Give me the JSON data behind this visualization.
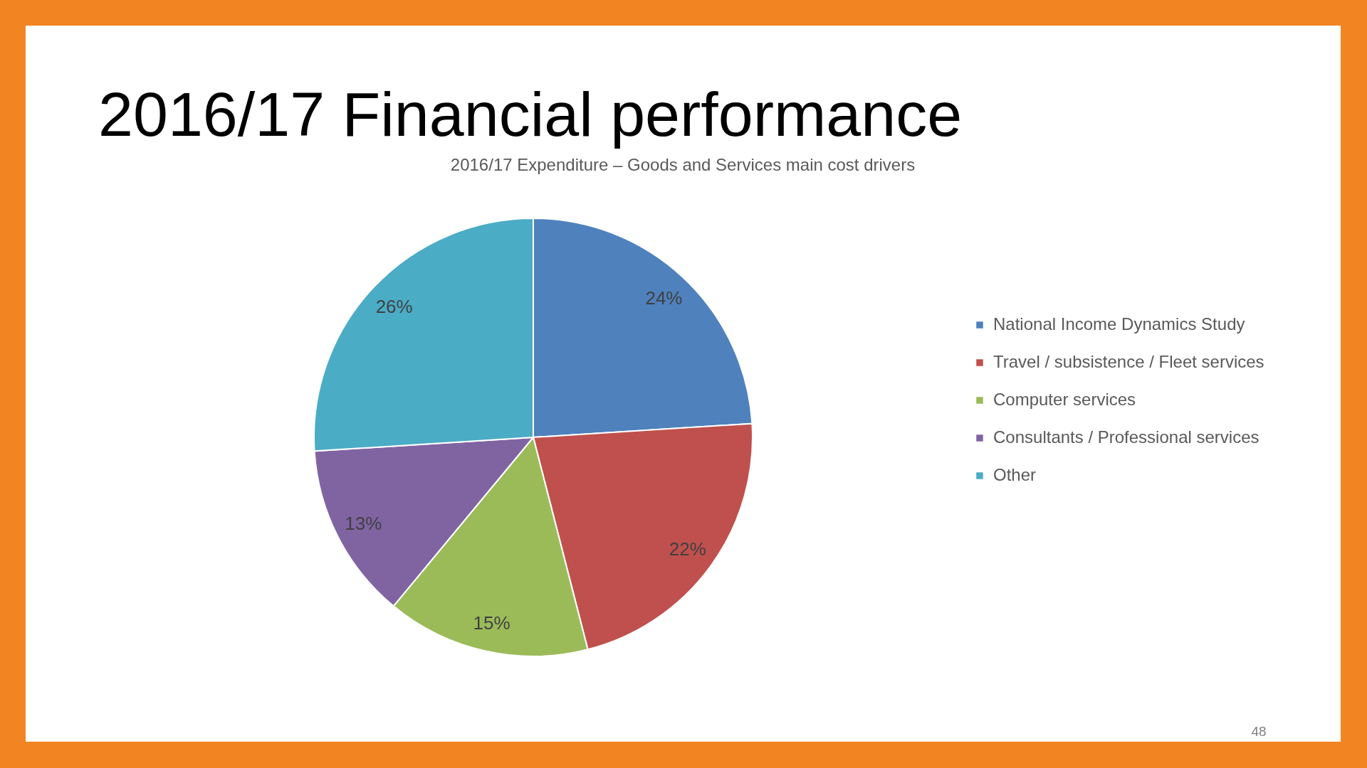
{
  "chart_data": {
    "type": "pie",
    "title": "2016/17 Financial performance",
    "subtitle": "2016/17 Expenditure – Goods and Services main cost drivers",
    "categories": [
      "National Income Dynamics Study",
      "Travel / subsistence / Fleet services",
      "Computer services",
      "Consultants / Professional services",
      "Other"
    ],
    "values": [
      24,
      22,
      15,
      13,
      26
    ],
    "colors": [
      "#4f81bd",
      "#c0504d",
      "#9bbb59",
      "#8064a2",
      "#4bacc6"
    ],
    "value_labels": [
      "24%",
      "22%",
      "15%",
      "13%",
      "26%"
    ],
    "legend": "right",
    "annotations": [
      "48"
    ]
  }
}
